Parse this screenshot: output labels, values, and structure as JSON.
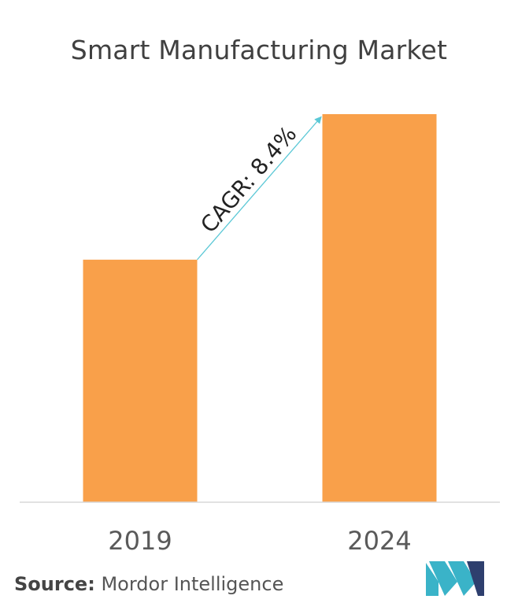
{
  "chart_data": {
    "type": "bar",
    "title": "Smart Manufacturing Market",
    "categories": [
      "2019",
      "2024"
    ],
    "values": [
      1.0,
      1.6
    ],
    "ylim": [
      0,
      1.6
    ],
    "grid": false,
    "annotation": {
      "text": "CAGR: 8.4%",
      "type": "arrow",
      "from": "2019",
      "to": "2024"
    },
    "bar_color": "#F9A04A",
    "arrow_color": "#5BC8D6",
    "axis_color": "#D9D9D9"
  },
  "source": {
    "label": "Source:",
    "text": "Mordor Intelligence"
  },
  "logo": {
    "icon": "mordor-intelligence-logo-icon",
    "colors": [
      "#3AB3C8",
      "#2E3F6E"
    ]
  }
}
